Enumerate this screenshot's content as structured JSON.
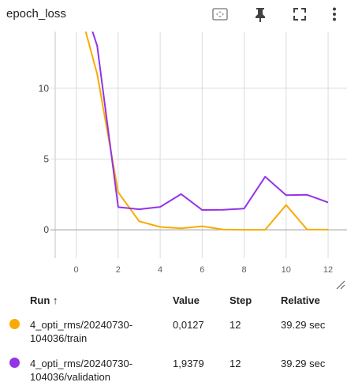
{
  "card": {
    "title": "epoch_loss"
  },
  "toolbar": [
    {
      "name": "fit-domain-icon"
    },
    {
      "name": "pin-icon"
    },
    {
      "name": "fullscreen-icon"
    },
    {
      "name": "more-vert-icon"
    }
  ],
  "chart_data": {
    "type": "line",
    "title": "epoch_loss",
    "xlabel": "",
    "ylabel": "",
    "xlim": [
      -1,
      12.9
    ],
    "ylim": [
      -2,
      14
    ],
    "xticks": [
      0,
      2,
      4,
      6,
      8,
      10,
      12
    ],
    "yticks": [
      0,
      5,
      10
    ],
    "grid": true,
    "series": [
      {
        "name": "4_opti_rms/20240730-104036/train",
        "color": "#f9ab00",
        "x": [
          0,
          1,
          2,
          3,
          4,
          5,
          6,
          7,
          8,
          9,
          10,
          11,
          12
        ],
        "y": [
          16.5,
          11.0,
          2.65,
          0.6,
          0.2,
          0.1,
          0.25,
          0.02,
          0.0,
          0.0,
          1.75,
          0.02,
          0.0127
        ]
      },
      {
        "name": "4_opti_rms/20240730-104036/validation",
        "color": "#9334e6",
        "x": [
          0,
          1,
          2,
          3,
          4,
          5,
          6,
          7,
          8,
          9,
          10,
          11,
          12
        ],
        "y": [
          17.5,
          13.0,
          1.6,
          1.45,
          1.62,
          2.52,
          1.4,
          1.42,
          1.5,
          3.75,
          2.45,
          2.47,
          1.9379
        ]
      }
    ]
  },
  "table": {
    "headers": {
      "run": "Run ↑",
      "value": "Value",
      "step": "Step",
      "relative": "Relative"
    },
    "rows": [
      {
        "run_line1": "4_opti_rms/20240730-",
        "run_line2": "104036/train",
        "value": "0,0127",
        "step": "12",
        "relative": "39.29 sec",
        "color": "#f9ab00"
      },
      {
        "run_line1": "4_opti_rms/20240730-",
        "run_line2": "104036/validation",
        "value": "1,9379",
        "step": "12",
        "relative": "39.29 sec",
        "color": "#9334e6"
      }
    ]
  }
}
